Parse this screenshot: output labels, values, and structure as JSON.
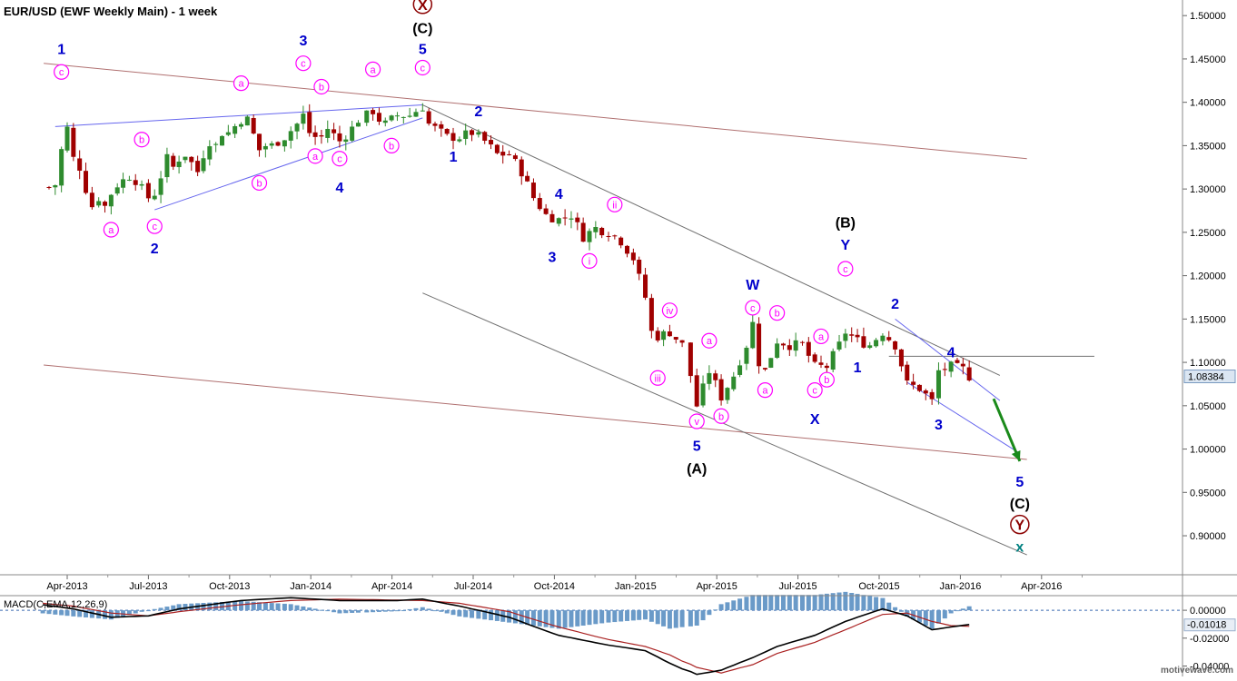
{
  "header": {
    "title": "EUR/USD (EWF Weekly Main) - 1 week"
  },
  "watermark": "motivewave.com",
  "colors": {
    "up": "#2e8b2e",
    "down": "#a00000",
    "wave_blue": "#0000cc",
    "wave_magenta": "#ff00ff",
    "wave_black": "#000000",
    "wave_darkred": "#8b0000",
    "wave_teal": "#008080",
    "trend_gray": "#707070",
    "trend_brown": "#b07070",
    "trend_blue": "#6666ee",
    "arrow": "#1a8a1a",
    "macd_hist": "#6a9ac8",
    "macd_line": "#000000",
    "signal_line": "#aa2222"
  },
  "chart_data": [
    {
      "type": "candlestick",
      "title": "EUR/USD (EWF Weekly Main) - 1 week",
      "x_tick_labels": [
        "Apr-2013",
        "Jul-2013",
        "Oct-2013",
        "Jan-2014",
        "Apr-2014",
        "Jul-2014",
        "Oct-2014",
        "Jan-2015",
        "Apr-2015",
        "Jul-2015",
        "Oct-2015",
        "Jan-2016",
        "Apr-2016"
      ],
      "y_tick_labels": [
        "0.90000",
        "0.95000",
        "1.00000",
        "1.05000",
        "1.10000",
        "1.15000",
        "1.20000",
        "1.25000",
        "1.30000",
        "1.35000",
        "1.40000",
        "1.45000",
        "1.50000"
      ],
      "ylim": [
        0.855,
        1.518
      ],
      "grid": false,
      "last_price_label": "1.08384",
      "price_anchors": [
        [
          "2013-03-11",
          1.302
        ],
        [
          "2013-03-18",
          1.305
        ],
        [
          "2013-03-25",
          1.345
        ],
        [
          "2013-04-01",
          1.37
        ],
        [
          "2013-04-08",
          1.335
        ],
        [
          "2013-04-15",
          1.325
        ],
        [
          "2013-04-22",
          1.3
        ],
        [
          "2013-04-29",
          1.28
        ],
        [
          "2013-05-06",
          1.29
        ],
        [
          "2013-05-13",
          1.28
        ],
        [
          "2013-05-20",
          1.295
        ],
        [
          "2013-05-27",
          1.305
        ],
        [
          "2013-06-10",
          1.315
        ],
        [
          "2013-06-17",
          1.31
        ],
        [
          "2013-06-24",
          1.3
        ],
        [
          "2013-07-01",
          1.29
        ],
        [
          "2013-07-08",
          1.295
        ],
        [
          "2013-07-15",
          1.315
        ],
        [
          "2013-07-22",
          1.335
        ],
        [
          "2013-07-29",
          1.325
        ],
        [
          "2013-08-05",
          1.335
        ],
        [
          "2013-08-12",
          1.34
        ],
        [
          "2013-08-19",
          1.33
        ],
        [
          "2013-08-26",
          1.32
        ],
        [
          "2013-09-02",
          1.34
        ],
        [
          "2013-09-09",
          1.355
        ],
        [
          "2013-09-16",
          1.35
        ],
        [
          "2013-09-23",
          1.365
        ],
        [
          "2013-09-30",
          1.365
        ],
        [
          "2013-10-14",
          1.38
        ],
        [
          "2013-10-21",
          1.38
        ],
        [
          "2013-11-04",
          1.345
        ],
        [
          "2013-11-11",
          1.35
        ],
        [
          "2013-11-18",
          1.35
        ],
        [
          "2013-12-02",
          1.36
        ],
        [
          "2013-12-16",
          1.375
        ],
        [
          "2013-12-23",
          1.385
        ],
        [
          "2013-12-30",
          1.365
        ],
        [
          "2014-01-06",
          1.36
        ],
        [
          "2014-01-13",
          1.36
        ],
        [
          "2014-01-20",
          1.37
        ],
        [
          "2014-02-03",
          1.355
        ],
        [
          "2014-02-17",
          1.37
        ],
        [
          "2014-02-24",
          1.38
        ],
        [
          "2014-03-10",
          1.39
        ],
        [
          "2014-03-17",
          1.38
        ],
        [
          "2014-03-24",
          1.375
        ],
        [
          "2014-04-07",
          1.385
        ],
        [
          "2014-04-21",
          1.385
        ],
        [
          "2014-05-05",
          1.395
        ],
        [
          "2014-05-12",
          1.375
        ],
        [
          "2014-05-19",
          1.37
        ],
        [
          "2014-06-02",
          1.36
        ],
        [
          "2014-06-16",
          1.36
        ],
        [
          "2014-06-30",
          1.365
        ],
        [
          "2014-07-14",
          1.355
        ],
        [
          "2014-07-28",
          1.34
        ],
        [
          "2014-08-11",
          1.34
        ],
        [
          "2014-08-25",
          1.32
        ],
        [
          "2014-09-08",
          1.29
        ],
        [
          "2014-09-22",
          1.27
        ],
        [
          "2014-10-06",
          1.265
        ],
        [
          "2014-10-20",
          1.27
        ],
        [
          "2014-11-03",
          1.245
        ],
        [
          "2014-11-17",
          1.255
        ],
        [
          "2014-12-01",
          1.25
        ],
        [
          "2014-12-15",
          1.24
        ],
        [
          "2014-12-29",
          1.22
        ],
        [
          "2015-01-12",
          1.175
        ],
        [
          "2015-01-19",
          1.135
        ],
        [
          "2015-01-26",
          1.13
        ],
        [
          "2015-02-09",
          1.135
        ],
        [
          "2015-02-23",
          1.12
        ],
        [
          "2015-03-02",
          1.085
        ],
        [
          "2015-03-09",
          1.05
        ],
        [
          "2015-03-16",
          1.07
        ],
        [
          "2015-03-23",
          1.09
        ],
        [
          "2015-04-06",
          1.06
        ],
        [
          "2015-04-20",
          1.085
        ],
        [
          "2015-05-04",
          1.12
        ],
        [
          "2015-05-11",
          1.145
        ],
        [
          "2015-05-18",
          1.1
        ],
        [
          "2015-05-25",
          1.09
        ],
        [
          "2015-06-08",
          1.125
        ],
        [
          "2015-06-22",
          1.12
        ],
        [
          "2015-07-06",
          1.12
        ],
        [
          "2015-07-20",
          1.095
        ],
        [
          "2015-08-03",
          1.095
        ],
        [
          "2015-08-17",
          1.12
        ],
        [
          "2015-08-24",
          1.135
        ],
        [
          "2015-09-07",
          1.125
        ],
        [
          "2015-09-21",
          1.12
        ],
        [
          "2015-10-05",
          1.135
        ],
        [
          "2015-10-19",
          1.12
        ],
        [
          "2015-11-02",
          1.075
        ],
        [
          "2015-11-16",
          1.07
        ],
        [
          "2015-11-30",
          1.055
        ],
        [
          "2015-12-07",
          1.09
        ],
        [
          "2015-12-21",
          1.095
        ],
        [
          "2016-01-04",
          1.092
        ],
        [
          "2016-01-11",
          1.084
        ]
      ],
      "trend_lines": [
        {
          "color": "trend_brown",
          "from": [
            "2013-03-05",
            1.445
          ],
          "to": [
            "2016-03-15",
            1.335
          ]
        },
        {
          "color": "trend_brown",
          "from": [
            "2013-03-05",
            1.097
          ],
          "to": [
            "2016-03-15",
            0.988
          ]
        },
        {
          "color": "trend_gray",
          "from": [
            "2014-05-05",
            1.397
          ],
          "to": [
            "2016-02-15",
            1.085
          ]
        },
        {
          "color": "trend_gray",
          "from": [
            "2014-05-05",
            1.18
          ],
          "to": [
            "2016-03-15",
            0.878
          ]
        },
        {
          "color": "trend_gray",
          "from": [
            "2015-10-12",
            1.107
          ],
          "to": [
            "2016-05-30",
            1.107
          ]
        },
        {
          "color": "trend_blue",
          "from": [
            "2013-03-18",
            1.372
          ],
          "to": [
            "2014-05-05",
            1.397
          ]
        },
        {
          "color": "trend_blue",
          "from": [
            "2013-07-08",
            1.276
          ],
          "to": [
            "2014-05-05",
            1.382
          ]
        },
        {
          "color": "trend_blue",
          "from": [
            "2015-10-19",
            1.15
          ],
          "to": [
            "2016-02-15",
            1.056
          ]
        },
        {
          "color": "trend_blue",
          "from": [
            "2015-11-02",
            1.077
          ],
          "to": [
            "2016-03-07",
            0.995
          ]
        }
      ],
      "arrow": {
        "from": [
          "2016-02-08",
          1.058
        ],
        "to": [
          "2016-03-07",
          0.986
        ]
      },
      "wave_labels": [
        {
          "t": "1",
          "d": "2013-03-25",
          "p": 1.462,
          "s": "blue"
        },
        {
          "t": "c",
          "d": "2013-03-25",
          "p": 1.435,
          "s": "circ_magenta"
        },
        {
          "t": "a",
          "d": "2013-05-20",
          "p": 1.253,
          "s": "circ_magenta"
        },
        {
          "t": "b",
          "d": "2013-06-24",
          "p": 1.357,
          "s": "circ_magenta"
        },
        {
          "t": "c",
          "d": "2013-07-08",
          "p": 1.257,
          "s": "circ_magenta"
        },
        {
          "t": "2",
          "d": "2013-07-08",
          "p": 1.232,
          "s": "blue"
        },
        {
          "t": "b",
          "d": "2013-11-04",
          "p": 1.307,
          "s": "circ_magenta"
        },
        {
          "t": "a",
          "d": "2013-10-14",
          "p": 1.422,
          "s": "circ_magenta"
        },
        {
          "t": "3",
          "d": "2013-12-23",
          "p": 1.472,
          "s": "blue"
        },
        {
          "t": "c",
          "d": "2013-12-23",
          "p": 1.445,
          "s": "circ_magenta"
        },
        {
          "t": "b",
          "d": "2014-01-13",
          "p": 1.418,
          "s": "circ_magenta"
        },
        {
          "t": "a",
          "d": "2014-01-06",
          "p": 1.338,
          "s": "circ_magenta"
        },
        {
          "t": "c",
          "d": "2014-02-03",
          "p": 1.335,
          "s": "circ_magenta"
        },
        {
          "t": "4",
          "d": "2014-02-03",
          "p": 1.302,
          "s": "blue"
        },
        {
          "t": "a",
          "d": "2014-03-10",
          "p": 1.438,
          "s": "circ_magenta"
        },
        {
          "t": "b",
          "d": "2014-03-31",
          "p": 1.35,
          "s": "circ_magenta"
        },
        {
          "t": "X",
          "d": "2014-05-05",
          "p": 1.513,
          "s": "circ_darkred"
        },
        {
          "t": "(C)",
          "d": "2014-05-05",
          "p": 1.486,
          "s": "black"
        },
        {
          "t": "5",
          "d": "2014-05-05",
          "p": 1.462,
          "s": "blue"
        },
        {
          "t": "c",
          "d": "2014-05-05",
          "p": 1.44,
          "s": "circ_magenta"
        },
        {
          "t": "1",
          "d": "2014-06-09",
          "p": 1.338,
          "s": "blue"
        },
        {
          "t": "2",
          "d": "2014-07-07",
          "p": 1.39,
          "s": "blue"
        },
        {
          "t": "4",
          "d": "2014-10-06",
          "p": 1.295,
          "s": "blue"
        },
        {
          "t": "3",
          "d": "2014-09-29",
          "p": 1.222,
          "s": "blue"
        },
        {
          "t": "ii",
          "d": "2014-12-08",
          "p": 1.282,
          "s": "circ_magenta"
        },
        {
          "t": "i",
          "d": "2014-11-10",
          "p": 1.217,
          "s": "circ_magenta"
        },
        {
          "t": "iv",
          "d": "2015-02-09",
          "p": 1.16,
          "s": "circ_magenta"
        },
        {
          "t": "iii",
          "d": "2015-01-26",
          "p": 1.082,
          "s": "circ_magenta"
        },
        {
          "t": "v",
          "d": "2015-03-09",
          "p": 1.032,
          "s": "circ_magenta"
        },
        {
          "t": "5",
          "d": "2015-03-09",
          "p": 1.004,
          "s": "blue"
        },
        {
          "t": "(A)",
          "d": "2015-03-09",
          "p": 0.978,
          "s": "black"
        },
        {
          "t": "a",
          "d": "2015-03-23",
          "p": 1.125,
          "s": "circ_magenta"
        },
        {
          "t": "b",
          "d": "2015-04-06",
          "p": 1.038,
          "s": "circ_magenta"
        },
        {
          "t": "W",
          "d": "2015-05-11",
          "p": 1.19,
          "s": "blue"
        },
        {
          "t": "c",
          "d": "2015-05-11",
          "p": 1.163,
          "s": "circ_magenta"
        },
        {
          "t": "a",
          "d": "2015-05-25",
          "p": 1.068,
          "s": "circ_magenta"
        },
        {
          "t": "b",
          "d": "2015-06-08",
          "p": 1.157,
          "s": "circ_magenta"
        },
        {
          "t": "a",
          "d": "2015-07-27",
          "p": 1.13,
          "s": "circ_magenta"
        },
        {
          "t": "c",
          "d": "2015-07-20",
          "p": 1.068,
          "s": "circ_magenta"
        },
        {
          "t": "b",
          "d": "2015-08-03",
          "p": 1.08,
          "s": "circ_magenta"
        },
        {
          "t": "X",
          "d": "2015-07-20",
          "p": 1.035,
          "s": "blue"
        },
        {
          "t": "(B)",
          "d": "2015-08-24",
          "p": 1.262,
          "s": "black"
        },
        {
          "t": "Y",
          "d": "2015-08-24",
          "p": 1.236,
          "s": "blue"
        },
        {
          "t": "c",
          "d": "2015-08-24",
          "p": 1.208,
          "s": "circ_magenta"
        },
        {
          "t": "1",
          "d": "2015-09-07",
          "p": 1.095,
          "s": "blue"
        },
        {
          "t": "2",
          "d": "2015-10-19",
          "p": 1.168,
          "s": "blue"
        },
        {
          "t": "4",
          "d": "2015-12-21",
          "p": 1.112,
          "s": "blue"
        },
        {
          "t": "3",
          "d": "2015-12-07",
          "p": 1.029,
          "s": "blue"
        },
        {
          "t": "5",
          "d": "2016-03-07",
          "p": 0.963,
          "s": "blue"
        },
        {
          "t": "(C)",
          "d": "2016-03-07",
          "p": 0.938,
          "s": "black"
        },
        {
          "t": "Y",
          "d": "2016-03-07",
          "p": 0.913,
          "s": "circ_darkred"
        },
        {
          "t": "x",
          "d": "2016-03-07",
          "p": 0.888,
          "s": "teal"
        }
      ]
    },
    {
      "type": "macd",
      "title": "MACD(C,EMA,12,26,9)",
      "y_tick_labels": [
        "0.00000",
        "-0.02000",
        "-0.04000"
      ],
      "ylim": [
        -0.0475,
        0.0105
      ],
      "last_value_label": "-0.01018",
      "macd_anchors": [
        [
          "2013-03-04",
          0.004
        ],
        [
          "2013-04-08",
          0.001
        ],
        [
          "2013-05-20",
          -0.005
        ],
        [
          "2013-07-01",
          -0.004
        ],
        [
          "2013-08-05",
          0.001
        ],
        [
          "2013-10-14",
          0.007
        ],
        [
          "2013-12-09",
          0.009
        ],
        [
          "2014-02-03",
          0.007
        ],
        [
          "2014-04-07",
          0.007
        ],
        [
          "2014-05-05",
          0.008
        ],
        [
          "2014-06-16",
          0.003
        ],
        [
          "2014-08-11",
          -0.005
        ],
        [
          "2014-10-06",
          -0.018
        ],
        [
          "2014-12-01",
          -0.025
        ],
        [
          "2015-01-12",
          -0.029
        ],
        [
          "2015-02-09",
          -0.038
        ],
        [
          "2015-03-09",
          -0.046
        ],
        [
          "2015-04-06",
          -0.043
        ],
        [
          "2015-05-11",
          -0.034
        ],
        [
          "2015-06-08",
          -0.026
        ],
        [
          "2015-07-20",
          -0.018
        ],
        [
          "2015-08-24",
          -0.008
        ],
        [
          "2015-10-05",
          0.001
        ],
        [
          "2015-11-02",
          -0.004
        ],
        [
          "2015-11-30",
          -0.014
        ],
        [
          "2015-12-21",
          -0.012
        ],
        [
          "2016-01-11",
          -0.0102
        ]
      ],
      "signal_anchors": [
        [
          "2013-03-04",
          0.005
        ],
        [
          "2013-04-08",
          0.003
        ],
        [
          "2013-05-20",
          -0.002
        ],
        [
          "2013-07-01",
          -0.004
        ],
        [
          "2013-08-05",
          -0.001
        ],
        [
          "2013-10-14",
          0.004
        ],
        [
          "2013-12-09",
          0.007
        ],
        [
          "2014-02-03",
          0.008
        ],
        [
          "2014-05-05",
          0.007
        ],
        [
          "2014-06-16",
          0.005
        ],
        [
          "2014-08-11",
          -0.001
        ],
        [
          "2014-10-06",
          -0.012
        ],
        [
          "2014-12-01",
          -0.021
        ],
        [
          "2015-01-12",
          -0.026
        ],
        [
          "2015-02-09",
          -0.032
        ],
        [
          "2015-03-09",
          -0.041
        ],
        [
          "2015-04-06",
          -0.045
        ],
        [
          "2015-05-11",
          -0.039
        ],
        [
          "2015-06-08",
          -0.031
        ],
        [
          "2015-07-20",
          -0.023
        ],
        [
          "2015-08-24",
          -0.014
        ],
        [
          "2015-10-05",
          -0.003
        ],
        [
          "2015-11-02",
          -0.002
        ],
        [
          "2015-11-30",
          -0.008
        ],
        [
          "2015-12-21",
          -0.011
        ],
        [
          "2016-01-11",
          -0.0115
        ]
      ]
    }
  ]
}
